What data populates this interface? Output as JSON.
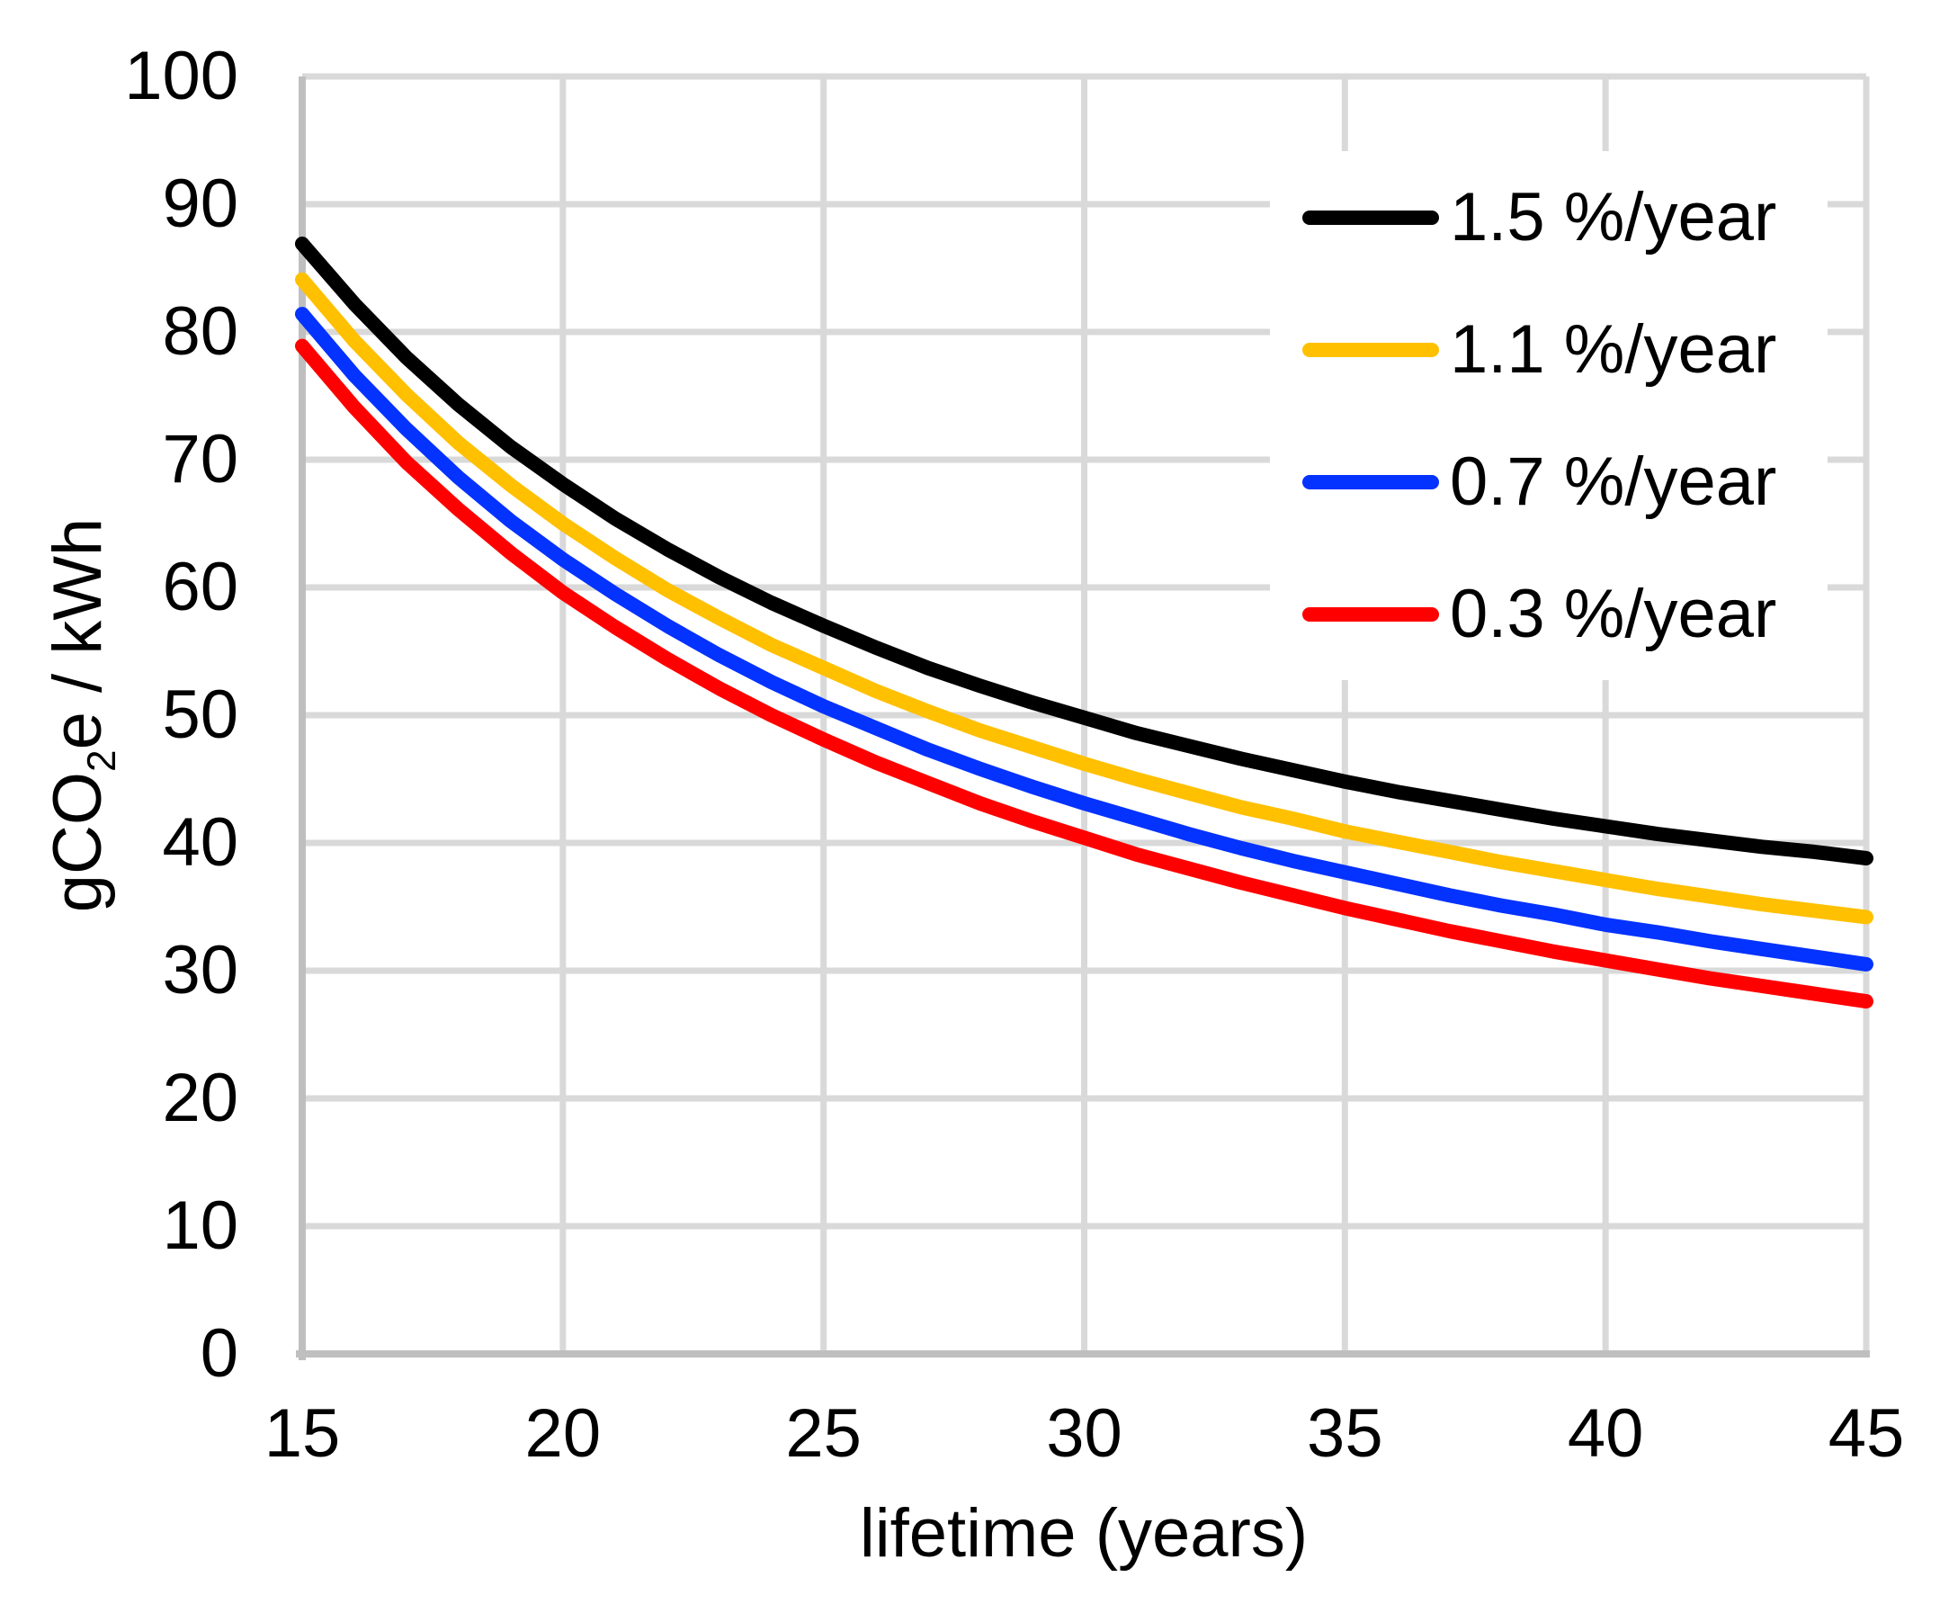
{
  "styles": {
    "background": "#FFFFFF",
    "grid_color": "#D9D9D9",
    "axis_color": "#BFBFBF",
    "text_color": "#000000"
  },
  "chart_data": {
    "type": "line",
    "title": "",
    "xlabel": "lifetime (years)",
    "ylabel": "gCO2e / kWh",
    "ylabel_parts": {
      "pre": "gCO",
      "sub": "2",
      "post": "e / kWh"
    },
    "xlim": [
      15,
      45
    ],
    "ylim": [
      0,
      100
    ],
    "xticks": [
      15,
      20,
      25,
      30,
      35,
      40,
      45
    ],
    "yticks": [
      0,
      10,
      20,
      30,
      40,
      50,
      60,
      70,
      80,
      90,
      100
    ],
    "grid": true,
    "legend_position": "inside-top-right",
    "x": [
      15,
      16,
      17,
      18,
      19,
      20,
      21,
      22,
      23,
      24,
      25,
      26,
      27,
      28,
      29,
      30,
      31,
      32,
      33,
      34,
      35,
      36,
      37,
      38,
      39,
      40,
      41,
      42,
      43,
      44,
      45
    ],
    "series": [
      {
        "name": "1.5 %/year",
        "color": "#000000",
        "values": [
          86.9,
          82.2,
          78.0,
          74.3,
          71.0,
          68.1,
          65.4,
          63.0,
          60.8,
          58.8,
          57.0,
          55.3,
          53.7,
          52.3,
          51.0,
          49.8,
          48.6,
          47.6,
          46.6,
          45.7,
          44.8,
          44.0,
          43.3,
          42.6,
          41.9,
          41.3,
          40.7,
          40.2,
          39.7,
          39.3,
          38.8
        ]
      },
      {
        "name": "1.1 %/year",
        "color": "#FFC000",
        "values": [
          84.1,
          79.3,
          75.1,
          71.3,
          68.0,
          65.0,
          62.3,
          59.8,
          57.6,
          55.5,
          53.7,
          51.9,
          50.3,
          48.8,
          47.5,
          46.2,
          45.0,
          43.9,
          42.8,
          41.9,
          40.9,
          40.1,
          39.3,
          38.5,
          37.8,
          37.1,
          36.4,
          35.8,
          35.2,
          34.7,
          34.2
        ]
      },
      {
        "name": "0.7 %/year",
        "color": "#0432FF",
        "values": [
          81.4,
          76.6,
          72.4,
          68.6,
          65.2,
          62.2,
          59.5,
          57.0,
          54.7,
          52.6,
          50.7,
          49.0,
          47.3,
          45.8,
          44.4,
          43.1,
          41.9,
          40.7,
          39.6,
          38.6,
          37.7,
          36.8,
          35.9,
          35.1,
          34.4,
          33.6,
          33.0,
          32.3,
          31.7,
          31.1,
          30.5
        ]
      },
      {
        "name": "0.3 %/year",
        "color": "#FF0000",
        "values": [
          78.9,
          74.1,
          69.8,
          66.1,
          62.7,
          59.6,
          56.9,
          54.4,
          52.1,
          50.0,
          48.1,
          46.3,
          44.7,
          43.1,
          41.7,
          40.4,
          39.1,
          38.0,
          36.9,
          35.9,
          34.9,
          34.0,
          33.1,
          32.3,
          31.5,
          30.8,
          30.1,
          29.4,
          28.8,
          28.2,
          27.6
        ]
      }
    ]
  }
}
